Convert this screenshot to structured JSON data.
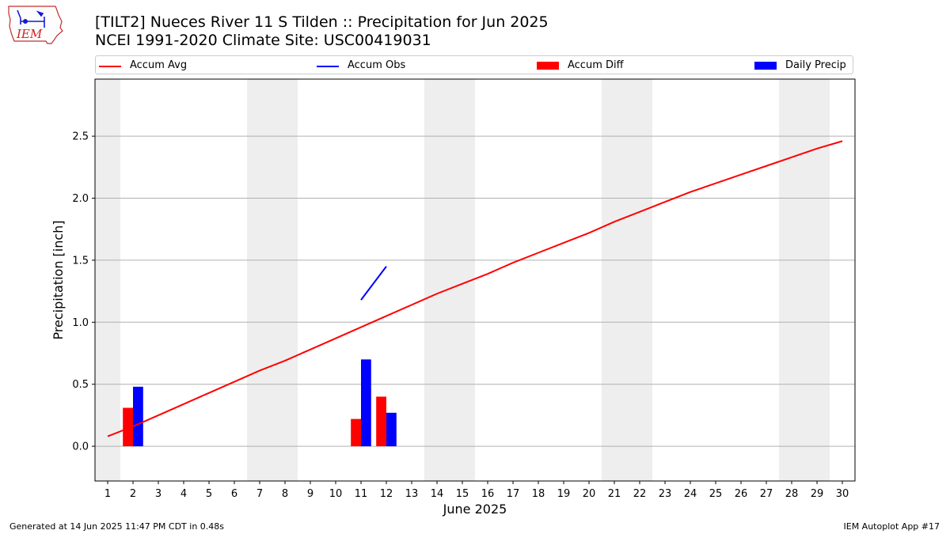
{
  "header": {
    "title": "[TILT2] Nueces River 11 S Tilden :: Precipitation for Jun 2025",
    "subtitle": "NCEI 1991-2020 Climate Site: USC00419031"
  },
  "logo": {
    "text": "IEM",
    "icon": "iem-iowa-logo"
  },
  "footer": {
    "generated": "Generated at 14 Jun 2025 11:47 PM CDT in 0.48s",
    "app": "IEM Autoplot App #17"
  },
  "legend": {
    "placement": "top-center-outside",
    "items": [
      {
        "label": "Accum Avg",
        "kind": "line",
        "color": "#ff0000"
      },
      {
        "label": "Accum Obs",
        "kind": "line",
        "color": "#0000ff"
      },
      {
        "label": "Accum Diff",
        "kind": "bar",
        "color": "#ff0000"
      },
      {
        "label": "Daily Precip",
        "kind": "bar",
        "color": "#0000ff"
      }
    ]
  },
  "chart_data": {
    "type": "bar",
    "title": "[TILT2] Nueces River 11 S Tilden :: Precipitation for Jun 2025",
    "xlabel": "June 2025",
    "ylabel": "Precipitation [inch]",
    "x": [
      1,
      2,
      3,
      4,
      5,
      6,
      7,
      8,
      9,
      10,
      11,
      12,
      13,
      14,
      15,
      16,
      17,
      18,
      19,
      20,
      21,
      22,
      23,
      24,
      25,
      26,
      27,
      28,
      29,
      30
    ],
    "xlim": [
      0.5,
      30.5
    ],
    "ylim": [
      -0.28,
      2.96
    ],
    "yticks": [
      0.0,
      0.5,
      1.0,
      1.5,
      2.0,
      2.5
    ],
    "ytick_labels": [
      "0.0",
      "0.5",
      "1.0",
      "1.5",
      "2.0",
      "2.5"
    ],
    "grid": "horizontal",
    "weekend_shading": [
      [
        0.5,
        1.5
      ],
      [
        6.5,
        8.5
      ],
      [
        13.5,
        15.5
      ],
      [
        20.5,
        22.5
      ],
      [
        27.5,
        29.5
      ]
    ],
    "series": [
      {
        "name": "Accum Avg",
        "type": "line",
        "color": "#ff0000",
        "x": [
          1,
          2,
          3,
          4,
          5,
          6,
          7,
          8,
          9,
          10,
          11,
          12,
          13,
          14,
          15,
          16,
          17,
          18,
          19,
          20,
          21,
          22,
          23,
          24,
          25,
          26,
          27,
          28,
          29,
          30
        ],
        "values": [
          0.08,
          0.16,
          0.25,
          0.34,
          0.43,
          0.52,
          0.61,
          0.69,
          0.78,
          0.87,
          0.96,
          1.05,
          1.14,
          1.23,
          1.31,
          1.39,
          1.48,
          1.56,
          1.64,
          1.72,
          1.81,
          1.89,
          1.97,
          2.05,
          2.12,
          2.19,
          2.26,
          2.33,
          2.4,
          2.46
        ]
      },
      {
        "name": "Accum Obs",
        "type": "line",
        "color": "#0000ff",
        "x": [
          11,
          12
        ],
        "values": [
          1.18,
          1.45
        ]
      },
      {
        "name": "Accum Diff",
        "type": "bar",
        "color": "#ff0000",
        "x": [
          2,
          11,
          12
        ],
        "values": [
          0.31,
          0.22,
          0.4
        ]
      },
      {
        "name": "Daily Precip",
        "type": "bar",
        "color": "#0000ff",
        "x": [
          2,
          11,
          12
        ],
        "values": [
          0.48,
          0.7,
          0.27
        ]
      }
    ]
  }
}
